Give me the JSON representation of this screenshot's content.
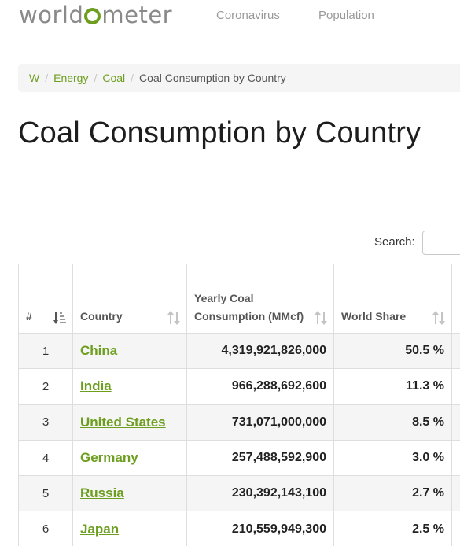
{
  "header": {
    "logo_prefix": "world",
    "logo_suffix": "meter",
    "nav": [
      "Coronavirus",
      "Population"
    ],
    "brand_color": "#6d9e1f"
  },
  "breadcrumb": {
    "items": [
      "W",
      "Energy",
      "Coal"
    ],
    "current": "Coal Consumption by Country",
    "separator": "/"
  },
  "page": {
    "title": "Coal Consumption by Country"
  },
  "search": {
    "label": "Search:",
    "value": ""
  },
  "table": {
    "columns": [
      "#",
      "Country",
      "Yearly Coal Consumption (MMcf)",
      "World Share"
    ],
    "rows": [
      {
        "rank": "1",
        "country": "China",
        "consumption": "4,319,921,826,000",
        "share": "50.5 %"
      },
      {
        "rank": "2",
        "country": "India",
        "consumption": "966,288,692,600",
        "share": "11.3 %"
      },
      {
        "rank": "3",
        "country": "United States",
        "consumption": "731,071,000,000",
        "share": "8.5 %"
      },
      {
        "rank": "4",
        "country": "Germany",
        "consumption": "257,488,592,900",
        "share": "3.0 %"
      },
      {
        "rank": "5",
        "country": "Russia",
        "consumption": "230,392,143,100",
        "share": "2.7 %"
      },
      {
        "rank": "6",
        "country": "Japan",
        "consumption": "210,559,949,300",
        "share": "2.5 %"
      }
    ]
  }
}
